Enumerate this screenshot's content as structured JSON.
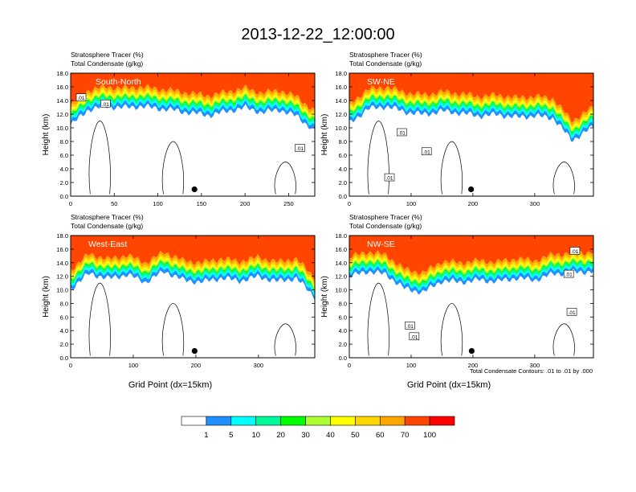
{
  "figure": {
    "title": "2013-12-22_12:00:00",
    "contour_note": "Total Condensate Contours: .01 to .01 by .000",
    "colorbar": {
      "levels": [
        "1",
        "5",
        "10",
        "20",
        "30",
        "40",
        "50",
        "60",
        "70",
        "100"
      ],
      "colors": [
        "#ffffff",
        "#1e90ff",
        "#00ffff",
        "#00fa9a",
        "#00ff00",
        "#adff2f",
        "#ffff00",
        "#ffd700",
        "#ffa500",
        "#ff4500",
        "#ff0000"
      ]
    }
  },
  "chart_data": [
    {
      "type": "heatmap",
      "panel": "top-left",
      "label": "South-North",
      "title_line1": "Stratosphere Tracer   (%)",
      "title_line2": "Total Condensate   (g/kg)",
      "ylabel": "Height (km)",
      "xlabel": "",
      "xlim": [
        0,
        280
      ],
      "ylim": [
        0,
        18
      ],
      "xticks": [
        0,
        50,
        100,
        150,
        200,
        250
      ],
      "yticks": [
        "0.0",
        "2.0",
        "4.0",
        "6.0",
        "8.0",
        "10.0",
        "12.0",
        "14.0",
        "16.0",
        "18.0"
      ],
      "tracer_profile": {
        "x": [
          0,
          20,
          40,
          60,
          80,
          100,
          120,
          140,
          160,
          180,
          200,
          220,
          240,
          260,
          280
        ],
        "base_km": [
          13.2,
          15.5,
          16.0,
          15.8,
          16.0,
          15.7,
          15.4,
          15.0,
          14.7,
          15.3,
          15.8,
          15.1,
          15.5,
          14.5,
          12.4
        ]
      },
      "contour_labels": [
        {
          "x": 12,
          "y": 14.4,
          "text": ".01"
        },
        {
          "x": 40,
          "y": 13.5,
          "text": ".01"
        },
        {
          "x": 263,
          "y": 7.0,
          "text": ".01"
        }
      ],
      "marker": {
        "x": 142,
        "y": 1.0
      }
    },
    {
      "type": "heatmap",
      "panel": "top-right",
      "label": "SW-NE",
      "title_line1": "Stratosphere Tracer   (%)",
      "title_line2": "Total Condensate   (g/kg)",
      "ylabel": "Height (km)",
      "xlabel": "",
      "xlim": [
        0,
        395
      ],
      "ylim": [
        0,
        18
      ],
      "xticks": [
        0,
        100,
        200,
        300
      ],
      "yticks": [
        "0.0",
        "2.0",
        "4.0",
        "6.0",
        "8.0",
        "10.0",
        "12.0",
        "14.0",
        "16.0",
        "18.0"
      ],
      "tracer_profile": {
        "x": [
          0,
          30,
          60,
          90,
          120,
          150,
          180,
          210,
          240,
          270,
          300,
          330,
          360,
          395
        ],
        "base_km": [
          13.5,
          15.6,
          16.0,
          15.2,
          14.8,
          15.3,
          15.0,
          14.6,
          14.8,
          14.4,
          14.6,
          14.3,
          11.0,
          13.0
        ]
      },
      "contour_labels": [
        {
          "x": 85,
          "y": 9.3,
          "text": ".01"
        },
        {
          "x": 125,
          "y": 6.5,
          "text": ".01"
        },
        {
          "x": 65,
          "y": 2.7,
          "text": ".01"
        }
      ],
      "marker": {
        "x": 197,
        "y": 1.0
      }
    },
    {
      "type": "heatmap",
      "panel": "bottom-left",
      "label": "West-East",
      "title_line1": "Stratosphere Tracer   (%)",
      "title_line2": "Total Condensate   (g/kg)",
      "ylabel": "Height (km)",
      "xlabel": "Grid Point (dx=15km)",
      "xlim": [
        0,
        390
      ],
      "ylim": [
        0,
        18
      ],
      "xticks": [
        0,
        100,
        200,
        300
      ],
      "yticks": [
        "0.0",
        "2.0",
        "4.0",
        "6.0",
        "8.0",
        "10.0",
        "12.0",
        "14.0",
        "16.0",
        "18.0"
      ],
      "tracer_profile": {
        "x": [
          0,
          30,
          60,
          90,
          120,
          150,
          180,
          210,
          240,
          270,
          300,
          330,
          360,
          390
        ],
        "base_km": [
          13.0,
          15.3,
          14.5,
          15.1,
          14.0,
          15.6,
          14.3,
          14.0,
          14.6,
          14.2,
          14.8,
          14.1,
          14.6,
          11.8
        ]
      },
      "contour_labels": [],
      "marker": {
        "x": 198,
        "y": 1.0
      }
    },
    {
      "type": "heatmap",
      "panel": "bottom-right",
      "label": "NW-SE",
      "title_line1": "Stratosphere Tracer   (%)",
      "title_line2": "Total Condensate   (g/kg)",
      "ylabel": "Height (km)",
      "xlabel": "Grid Point (dx=15km)",
      "xlim": [
        0,
        395
      ],
      "ylim": [
        0,
        18
      ],
      "xticks": [
        0,
        100,
        200,
        300
      ],
      "yticks": [
        "0.0",
        "2.0",
        "4.0",
        "6.0",
        "8.0",
        "10.0",
        "12.0",
        "14.0",
        "16.0",
        "18.0"
      ],
      "tracer_profile": {
        "x": [
          0,
          30,
          60,
          90,
          120,
          150,
          180,
          210,
          240,
          270,
          300,
          330,
          360,
          395
        ],
        "base_km": [
          14.8,
          15.6,
          15.1,
          13.0,
          12.5,
          14.2,
          14.0,
          14.3,
          14.1,
          14.6,
          14.3,
          15.2,
          15.4,
          15.6
        ]
      },
      "contour_labels": [
        {
          "x": 365,
          "y": 15.7,
          "text": ".01"
        },
        {
          "x": 355,
          "y": 12.3,
          "text": ".01"
        },
        {
          "x": 360,
          "y": 6.7,
          "text": ".01"
        },
        {
          "x": 98,
          "y": 4.7,
          "text": ".01"
        },
        {
          "x": 105,
          "y": 3.1,
          "text": ".01"
        }
      ],
      "marker": {
        "x": 198,
        "y": 1.0
      }
    }
  ]
}
